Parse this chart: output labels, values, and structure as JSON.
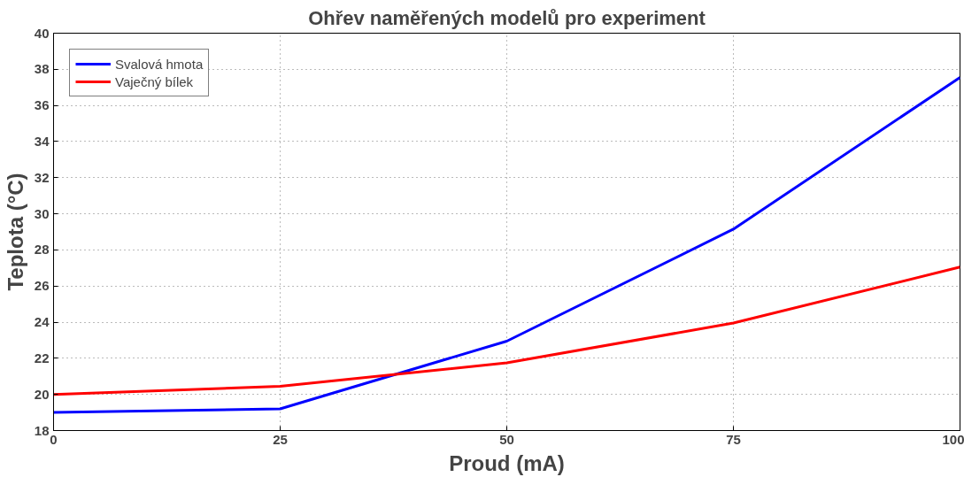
{
  "chart_data": {
    "type": "line",
    "title": "Ohřev naměřených modelů pro experiment",
    "xlabel": "Proud (mA)",
    "ylabel": "Teplota (°C)",
    "x": [
      0,
      25,
      50,
      75,
      100
    ],
    "series": [
      {
        "name": "Svalová hmota",
        "color": "#0000ff",
        "values": [
          19.0,
          19.2,
          22.95,
          29.15,
          37.55
        ]
      },
      {
        "name": "Vaječný bílek",
        "color": "#ff0000",
        "values": [
          20.0,
          20.45,
          21.75,
          23.95,
          27.05
        ]
      }
    ],
    "xlim": [
      0,
      100
    ],
    "xticks": [
      0,
      25,
      50,
      75,
      100
    ],
    "ylim": [
      18,
      40
    ],
    "yticks": [
      18,
      20,
      22,
      24,
      26,
      28,
      30,
      32,
      34,
      36,
      38,
      40
    ],
    "grid": true,
    "legend": "top left",
    "line_style": "solid",
    "marker": "none"
  }
}
